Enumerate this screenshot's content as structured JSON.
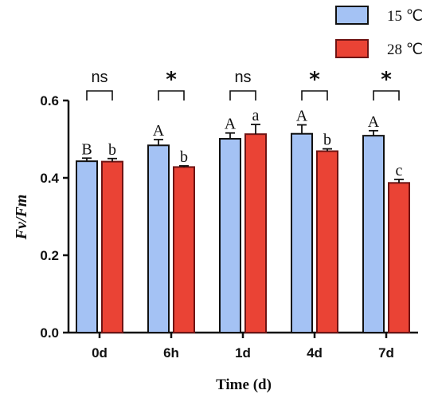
{
  "chart_data": {
    "type": "bar",
    "title": "",
    "xlabel": "Time (d)",
    "ylabel": "Fv/Fm",
    "ylim": [
      0,
      0.6
    ],
    "yticks": [
      "0.0",
      "0.2",
      "0.4",
      "0.6"
    ],
    "categories": [
      "0d",
      "6h",
      "1d",
      "4d",
      "7d"
    ],
    "series": [
      {
        "name": "15 ℃",
        "color": "#A4C2F4",
        "values": [
          0.443,
          0.484,
          0.501,
          0.514,
          0.509
        ],
        "errors": [
          0.008,
          0.015,
          0.015,
          0.023,
          0.013
        ],
        "letters": [
          "B",
          "A",
          "A",
          "A",
          "A"
        ]
      },
      {
        "name": "28 ℃",
        "color": "#EA4335",
        "values": [
          0.442,
          0.428,
          0.513,
          0.469,
          0.387
        ],
        "errors": [
          0.008,
          0.003,
          0.025,
          0.006,
          0.009
        ],
        "letters": [
          "b",
          "b",
          "a",
          "b",
          "c"
        ]
      }
    ],
    "significance": [
      "ns",
      "*",
      "ns",
      "*",
      "*"
    ],
    "legend_position": "top-right"
  }
}
